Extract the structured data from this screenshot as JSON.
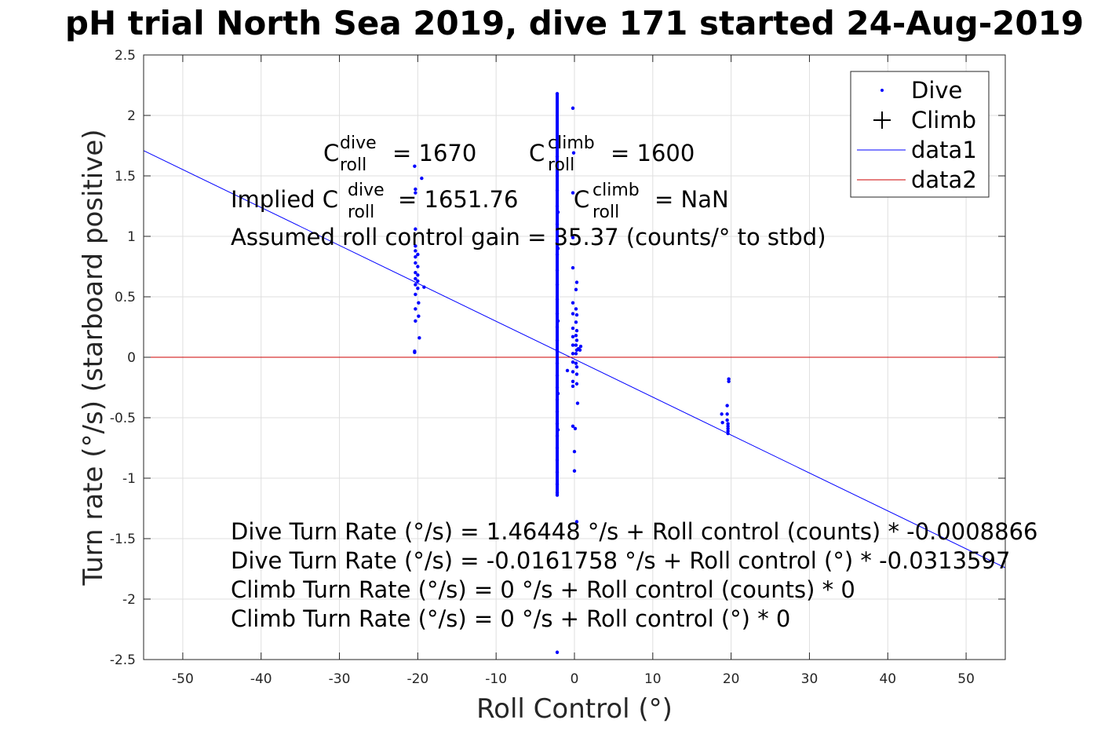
{
  "chart_data": {
    "type": "scatter",
    "title": "pH trial North Sea 2019, dive 171 started 24-Aug-2019",
    "xlabel": "Roll Control (°)",
    "ylabel": "Turn rate (°/s) (starboard positive)",
    "xlim": [
      -55,
      55
    ],
    "ylim": [
      -2.5,
      2.5
    ],
    "xticks": [
      -50,
      -40,
      -30,
      -20,
      -10,
      0,
      10,
      20,
      30,
      40,
      50
    ],
    "yticks": [
      -2.5,
      -2,
      -1.5,
      -1,
      -0.5,
      0,
      0.5,
      1,
      1.5,
      2,
      2.5
    ],
    "xtick_labels": [
      "-50",
      "-40",
      "-30",
      "-20",
      "-10",
      "0",
      "10",
      "20",
      "30",
      "40",
      "50"
    ],
    "ytick_labels": [
      "-2.5",
      "-2",
      "-1.5",
      "-1",
      "-0.5",
      "0",
      "0.5",
      "1",
      "1.5",
      "2",
      "2.5"
    ],
    "grid": true,
    "legend_position": "top-right",
    "series": [
      {
        "name": "Dive",
        "marker": "dot",
        "color": "#0000ff",
        "points": [
          [
            -20.4,
            1.58
          ],
          [
            -20.3,
            1.39
          ],
          [
            -20.3,
            1.36
          ],
          [
            -20.3,
            1.06
          ],
          [
            -20.3,
            0.92
          ],
          [
            -20.3,
            0.88
          ],
          [
            -20.3,
            0.83
          ],
          [
            -20.3,
            0.78
          ],
          [
            -20.3,
            0.7
          ],
          [
            -20.3,
            0.65
          ],
          [
            -20.3,
            0.6
          ],
          [
            -20.3,
            0.52
          ],
          [
            -20.3,
            0.4
          ],
          [
            -20.3,
            0.3
          ],
          [
            -20.4,
            0.05
          ],
          [
            -20.4,
            0.04
          ],
          [
            -20.0,
            0.85
          ],
          [
            -20.0,
            0.75
          ],
          [
            -20.0,
            0.68
          ],
          [
            -20.0,
            0.63
          ],
          [
            -20.0,
            0.57
          ],
          [
            -19.9,
            0.45
          ],
          [
            -19.9,
            0.34
          ],
          [
            -19.8,
            0.16
          ],
          [
            -19.5,
            1.48
          ],
          [
            -19.2,
            0.58
          ],
          [
            -2.2,
            2.18
          ],
          [
            -2.2,
            1.66
          ],
          [
            -2.2,
            1.55
          ],
          [
            -2.2,
            1.5
          ],
          [
            -2.2,
            1.38
          ],
          [
            -2.2,
            1.25
          ],
          [
            -2.2,
            1.1
          ],
          [
            -2.2,
            0.97
          ],
          [
            -2.2,
            0.85
          ],
          [
            -2.2,
            0.72
          ],
          [
            -2.2,
            0.6
          ],
          [
            -2.2,
            0.48
          ],
          [
            -2.2,
            0.36
          ],
          [
            -2.2,
            0.25
          ],
          [
            -2.2,
            0.14
          ],
          [
            -2.2,
            0.05
          ],
          [
            -2.2,
            -0.05
          ],
          [
            -2.2,
            -0.15
          ],
          [
            -2.2,
            -0.25
          ],
          [
            -2.2,
            -0.35
          ],
          [
            -2.2,
            -0.45
          ],
          [
            -2.2,
            -0.55
          ],
          [
            -2.2,
            -0.65
          ],
          [
            -2.2,
            -0.75
          ],
          [
            -2.2,
            -0.85
          ],
          [
            -2.2,
            -0.95
          ],
          [
            -2.2,
            -1.05
          ],
          [
            -2.2,
            -1.12
          ],
          [
            -2.2,
            -1.14
          ],
          [
            -2.2,
            -2.44
          ],
          [
            -2.1,
            1.2
          ],
          [
            -2.1,
            0.9
          ],
          [
            -2.1,
            0.3
          ],
          [
            -2.1,
            -0.3
          ],
          [
            -2.1,
            -0.6
          ],
          [
            -0.9,
            -0.11
          ],
          [
            -0.2,
            2.06
          ],
          [
            -0.1,
            1.69
          ],
          [
            -0.2,
            1.36
          ],
          [
            -0.2,
            0.99
          ],
          [
            -0.2,
            0.74
          ],
          [
            -0.2,
            0.45
          ],
          [
            -0.2,
            0.36
          ],
          [
            -0.2,
            0.24
          ],
          [
            -0.2,
            0.17
          ],
          [
            -0.2,
            0.1
          ],
          [
            -0.2,
            0.03
          ],
          [
            -0.2,
            -0.04
          ],
          [
            -0.2,
            -0.12
          ],
          [
            -0.2,
            -0.2
          ],
          [
            -0.2,
            -0.24
          ],
          [
            -0.2,
            -0.57
          ],
          [
            0.1,
            -0.59
          ],
          [
            0.0,
            -0.78
          ],
          [
            0.0,
            -0.94
          ],
          [
            0.2,
            0.56
          ],
          [
            0.2,
            0.4
          ],
          [
            0.2,
            0.29
          ],
          [
            0.2,
            0.18
          ],
          [
            0.2,
            0.1
          ],
          [
            0.2,
            0.03
          ],
          [
            0.2,
            -0.05
          ],
          [
            0.3,
            0.62
          ],
          [
            0.3,
            0.35
          ],
          [
            0.3,
            0.22
          ],
          [
            0.3,
            0.14
          ],
          [
            0.3,
            0.06
          ],
          [
            0.3,
            -0.08
          ],
          [
            0.3,
            -0.14
          ],
          [
            0.3,
            -0.22
          ],
          [
            0.4,
            -0.38
          ],
          [
            0.5,
            0.07
          ],
          [
            0.7,
            0.06
          ],
          [
            0.8,
            0.09
          ],
          [
            0.3,
            -1.36
          ],
          [
            18.8,
            -0.47
          ],
          [
            18.9,
            -0.54
          ],
          [
            19.5,
            -0.4
          ],
          [
            19.5,
            -0.47
          ],
          [
            19.5,
            -0.52
          ],
          [
            19.6,
            -0.55
          ],
          [
            19.6,
            -0.57
          ],
          [
            19.6,
            -0.59
          ],
          [
            19.6,
            -0.61
          ],
          [
            19.6,
            -0.63
          ],
          [
            19.7,
            -0.18
          ],
          [
            19.7,
            -0.2
          ]
        ]
      },
      {
        "name": "Climb",
        "marker": "plus",
        "color": "#000000",
        "points": []
      },
      {
        "name": "data1",
        "marker": "line",
        "color": "#0000ff",
        "points": [
          [
            -55,
            1.709
          ],
          [
            55,
            -1.741
          ]
        ]
      },
      {
        "name": "data2",
        "marker": "line",
        "color": "#cc0000",
        "points": [
          [
            -55,
            0
          ],
          [
            55,
            0
          ]
        ]
      }
    ],
    "annotations": {
      "c_dive": {
        "base": "C",
        "sup": "dive",
        "sub": "roll",
        "value": "= 1670"
      },
      "c_climb": {
        "base": "C",
        "sup": "climb",
        "sub": "roll",
        "value": "= 1600"
      },
      "implied_prefix": "Implied C",
      "implied_dive_sup": "dive",
      "implied_dive_sub": "roll",
      "implied_dive_value": "= 1651.76",
      "implied_climb_base": "C",
      "implied_climb_sup": "climb",
      "implied_climb_sub": "roll",
      "implied_climb_value": "= NaN",
      "gain": "Assumed roll control gain = 35.37 (counts/° to stbd)",
      "eq1": "Dive Turn Rate (°/s) = 1.46448 °/s + Roll control (counts) * -0.0008866",
      "eq2": "Dive Turn Rate (°/s) = -0.0161758 °/s + Roll control (°) * -0.0313597",
      "eq3": "Climb Turn Rate (°/s) = 0 °/s + Roll control (counts) * 0",
      "eq4": "Climb Turn Rate (°/s) = 0 °/s + Roll control (°) * 0"
    }
  }
}
